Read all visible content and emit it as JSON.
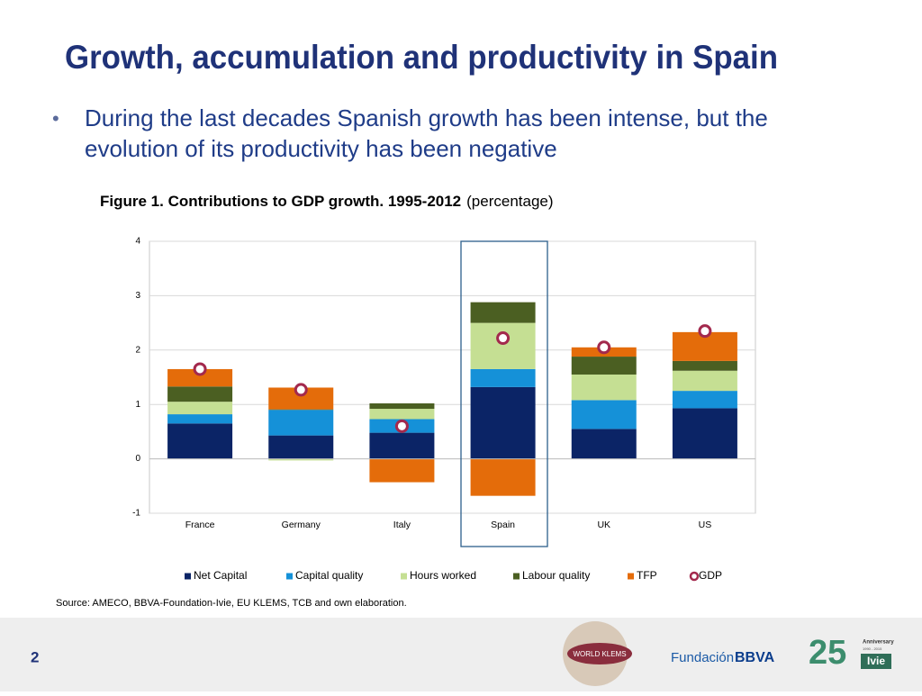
{
  "slide": {
    "title": "Growth, accumulation and productivity in Spain",
    "bullet": "During the last decades Spanish growth has been intense, but the evolution of its productivity has been negative",
    "figure_title": "Figure 1. Contributions to GDP growth. 1995-2012",
    "figure_unit": "(percentage)",
    "source": "Source: AMECO, BBVA-Foundation-Ivie, EU KLEMS, TCB and own elaboration.",
    "page_number": "2",
    "logos": {
      "world_klems": "WORLD KLEMS",
      "fundacion": "Fundación",
      "bbva": "BBVA",
      "twentyfive": "25",
      "anniversary": "Anniversary",
      "years": "1990 - 2015",
      "ivie": "Ivie"
    }
  },
  "chart_data": {
    "type": "bar",
    "stacked": true,
    "categories": [
      "France",
      "Germany",
      "Italy",
      "Spain",
      "UK",
      "US"
    ],
    "ylim": [
      -1,
      4
    ],
    "yticks": [
      -1,
      0,
      1,
      2,
      3,
      4
    ],
    "grid": true,
    "legend": "bottom",
    "series": [
      {
        "name": "Net Capital",
        "color": "#0b2466",
        "values": [
          0.65,
          0.43,
          0.48,
          1.32,
          0.55,
          0.93
        ]
      },
      {
        "name": "Capital quality",
        "color": "#1591d8",
        "values": [
          0.17,
          0.47,
          0.25,
          0.33,
          0.53,
          0.32
        ]
      },
      {
        "name": "Hours worked",
        "color": "#c5df93",
        "values": [
          0.23,
          -0.03,
          0.19,
          0.85,
          0.47,
          0.37
        ]
      },
      {
        "name": "Labour quality",
        "color": "#4b5f22",
        "values": [
          0.28,
          0.01,
          0.1,
          0.38,
          0.33,
          0.18
        ]
      },
      {
        "name": "TFP",
        "color": "#e46c0a",
        "values": [
          0.32,
          0.4,
          -0.43,
          -0.68,
          0.17,
          0.53
        ]
      },
      {
        "name": "GDP",
        "type": "scatter",
        "color": "#a3294d",
        "values": [
          1.65,
          1.27,
          0.6,
          2.22,
          2.05,
          2.35
        ]
      }
    ]
  }
}
